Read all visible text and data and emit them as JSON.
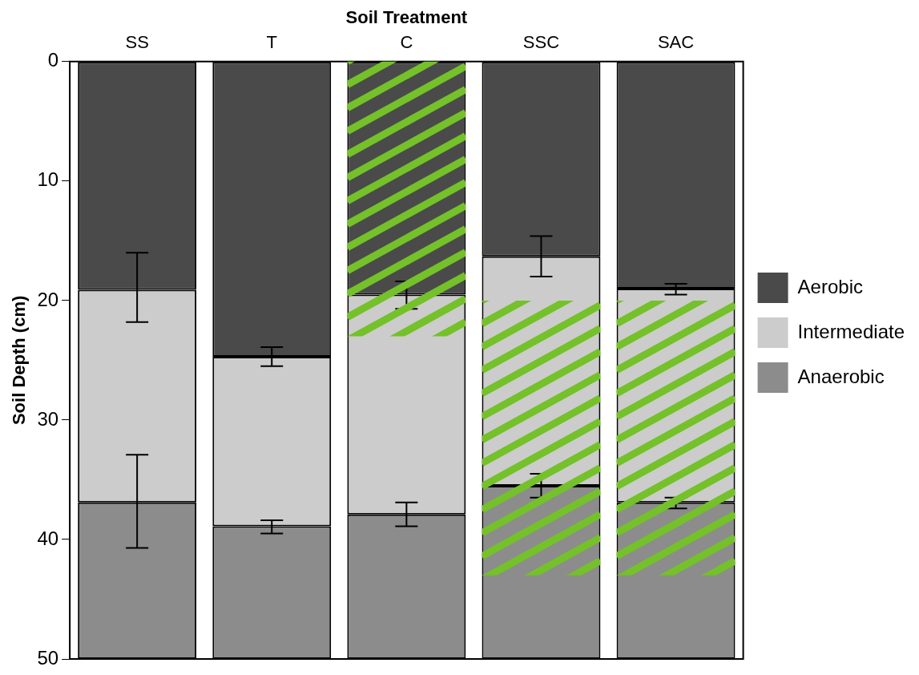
{
  "chart_data": {
    "type": "bar",
    "stacked": true,
    "xlabel": "Soil Treatment",
    "ylabel": "Soil Depth (cm)",
    "categories": [
      "SS",
      "T",
      "C",
      "SSC",
      "SAC"
    ],
    "series": [
      {
        "name": "Aerobic",
        "color": "#4a4a4a",
        "values": [
          19.1,
          24.7,
          19.5,
          16.3,
          19.0
        ],
        "errors": [
          [
            16.0,
            21.8
          ],
          [
            23.9,
            25.5
          ],
          [
            18.4,
            20.7
          ],
          [
            14.6,
            18.0
          ],
          [
            18.6,
            19.5
          ]
        ]
      },
      {
        "name": "Intermediate",
        "color": "#cccccc",
        "values": [
          17.8,
          14.2,
          18.4,
          19.2,
          17.9
        ],
        "errors": [
          [
            32.9,
            40.7
          ],
          [
            38.4,
            39.5
          ],
          [
            36.9,
            38.9
          ],
          [
            34.5,
            36.5
          ],
          [
            36.5,
            37.4
          ]
        ]
      },
      {
        "name": "Anaerobic",
        "color": "#8c8c8c",
        "values": [
          13.1,
          11.1,
          12.1,
          14.5,
          13.1
        ]
      }
    ],
    "ylim": [
      50,
      0
    ],
    "yticks": [
      0,
      10,
      20,
      30,
      40,
      50
    ],
    "legend": "right",
    "grid": false
  }
}
